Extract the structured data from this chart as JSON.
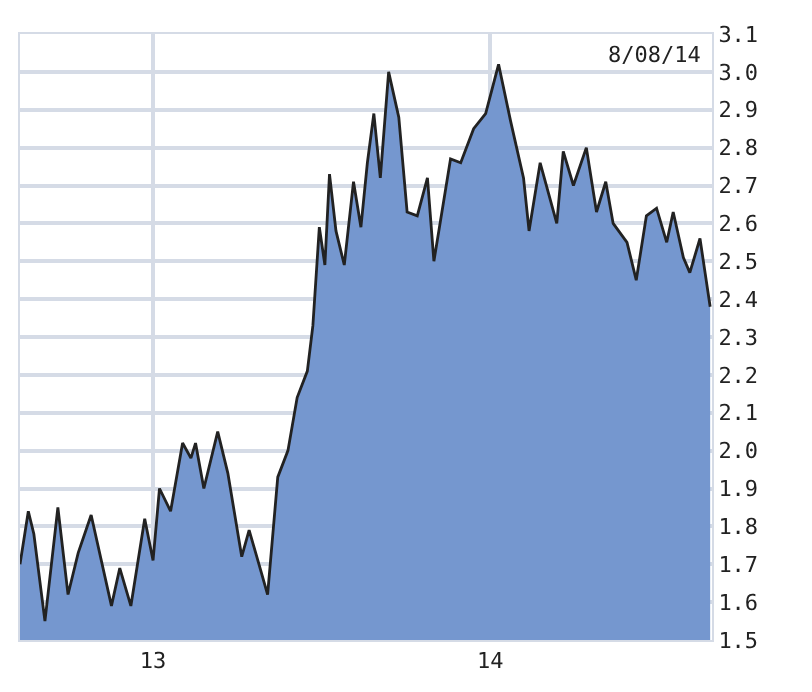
{
  "chart_data": {
    "type": "area",
    "x": [
      "2012-08-10",
      "2012-08-19",
      "2012-08-25",
      "2012-09-06",
      "2012-09-20",
      "2012-10-01",
      "2012-10-12",
      "2012-10-26",
      "2012-11-17",
      "2012-11-26",
      "2012-12-08",
      "2012-12-23",
      "2013-01-01",
      "2013-01-08",
      "2013-01-20",
      "2013-02-02",
      "2013-02-11",
      "2013-02-16",
      "2013-02-25",
      "2013-03-12",
      "2013-03-23",
      "2013-04-07",
      "2013-04-15",
      "2013-04-28",
      "2013-05-05",
      "2013-05-16",
      "2013-05-27",
      "2013-06-06",
      "2013-06-17",
      "2013-06-23",
      "2013-06-30",
      "2013-07-06",
      "2013-07-11",
      "2013-07-18",
      "2013-07-27",
      "2013-08-06",
      "2013-08-14",
      "2013-08-21",
      "2013-08-28",
      "2013-09-04",
      "2013-09-13",
      "2013-09-24",
      "2013-10-03",
      "2013-10-14",
      "2013-10-25",
      "2013-11-01",
      "2013-11-19",
      "2013-11-30",
      "2013-12-14",
      "2013-12-27",
      "2014-01-10",
      "2014-01-23",
      "2014-02-06",
      "2014-02-12",
      "2014-02-24",
      "2014-03-14",
      "2014-03-21",
      "2014-04-01",
      "2014-04-15",
      "2014-04-26",
      "2014-05-06",
      "2014-05-14",
      "2014-05-29",
      "2014-06-08",
      "2014-06-19",
      "2014-06-30",
      "2014-07-11",
      "2014-07-18",
      "2014-07-29",
      "2014-08-05",
      "2014-08-16",
      "2014-08-27"
    ],
    "series": [
      {
        "color": "#7597cf",
        "values": [
          1.7,
          1.84,
          1.78,
          1.55,
          1.85,
          1.62,
          1.73,
          1.83,
          1.59,
          1.69,
          1.59,
          1.82,
          1.71,
          1.9,
          1.84,
          2.02,
          1.98,
          2.02,
          1.9,
          2.05,
          1.94,
          1.72,
          1.79,
          1.68,
          1.62,
          1.93,
          2.0,
          2.14,
          2.21,
          2.33,
          2.59,
          2.49,
          2.73,
          2.58,
          2.49,
          2.71,
          2.59,
          2.76,
          2.89,
          2.72,
          3.0,
          2.88,
          2.63,
          2.62,
          2.72,
          2.5,
          2.77,
          2.76,
          2.85,
          2.89,
          3.02,
          2.87,
          2.72,
          2.58,
          2.76,
          2.6,
          2.79,
          2.7,
          2.8,
          2.63,
          2.71,
          2.6,
          2.55,
          2.45,
          2.62,
          2.64,
          2.55,
          2.63,
          2.51,
          2.47,
          2.56,
          2.38
        ]
      }
    ],
    "xlim": [
      "2012-08-10",
      "2014-08-29"
    ],
    "xticks": [
      {
        "value": "2013-01-01",
        "label": "13"
      },
      {
        "value": "2014-01-01",
        "label": "14"
      }
    ],
    "ylim": [
      1.5,
      3.1
    ],
    "yticks": [
      {
        "value": 1.5,
        "label": "1.5"
      },
      {
        "value": 1.6,
        "label": "1.6"
      },
      {
        "value": 1.7,
        "label": "1.7"
      },
      {
        "value": 1.8,
        "label": "1.8"
      },
      {
        "value": 1.9,
        "label": "1.9"
      },
      {
        "value": 2.0,
        "label": "2.0"
      },
      {
        "value": 2.1,
        "label": "2.1"
      },
      {
        "value": 2.2,
        "label": "2.2"
      },
      {
        "value": 2.3,
        "label": "2.3"
      },
      {
        "value": 2.4,
        "label": "2.4"
      },
      {
        "value": 2.5,
        "label": "2.5"
      },
      {
        "value": 2.6,
        "label": "2.6"
      },
      {
        "value": 2.7,
        "label": "2.7"
      },
      {
        "value": 2.8,
        "label": "2.8"
      },
      {
        "value": 2.9,
        "label": "2.9"
      },
      {
        "value": 3.0,
        "label": "3.0"
      },
      {
        "value": 3.1,
        "label": "3.1"
      }
    ],
    "annotations": [
      "8/08/14"
    ],
    "grid": true,
    "legend": false,
    "marker": "none",
    "line_style": "solid"
  }
}
